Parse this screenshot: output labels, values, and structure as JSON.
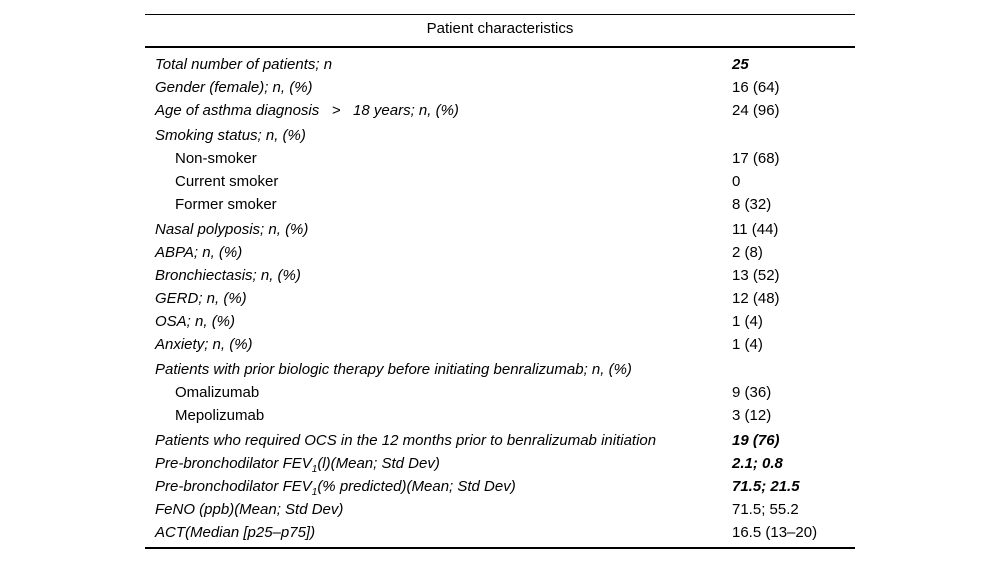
{
  "header": {
    "title": "Patient characteristics"
  },
  "colors": {
    "text": "#000000",
    "rule": "#000000",
    "background": "#ffffff"
  },
  "table": {
    "rows": [
      {
        "label": "Total number of patients; n",
        "value": "25",
        "bold": true
      },
      {
        "label": "Gender (female); n, (%)",
        "value": "16 (64)"
      },
      {
        "label": "Age of asthma diagnosis   >   18 years; n, (%)",
        "value": "24 (96)"
      },
      {
        "label": "Smoking status; n, (%)",
        "value": "",
        "gap": true
      },
      {
        "label": "Non-smoker",
        "value": "17 (68)",
        "indent": true
      },
      {
        "label": "Current smoker",
        "value": "0",
        "indent": true
      },
      {
        "label": "Former smoker",
        "value": "8 (32)",
        "indent": true
      },
      {
        "label": "Nasal polyposis; n, (%)",
        "value": "11 (44)",
        "gap": true
      },
      {
        "label": "ABPA; n, (%)",
        "value": "2 (8)"
      },
      {
        "label": "Bronchiectasis; n, (%)",
        "value": "13 (52)"
      },
      {
        "label": "GERD; n, (%)",
        "value": "12 (48)"
      },
      {
        "label": "OSA; n, (%)",
        "value": "1 (4)"
      },
      {
        "label": "Anxiety; n, (%)",
        "value": "1 (4)"
      },
      {
        "label": "Patients with prior biologic therapy before initiating benralizumab; n, (%)",
        "value": "",
        "gap": true
      },
      {
        "label": "Omalizumab",
        "value": "9 (36)",
        "indent": true
      },
      {
        "label": "Mepolizumab",
        "value": "3 (12)",
        "indent": true
      },
      {
        "label": "Patients who required OCS in the 12 months prior to benralizumab initiation",
        "value": "19 (76)",
        "bold": true,
        "gap": true
      },
      {
        "label_parts": [
          {
            "t": "Pre-bronchodilator FEV"
          },
          {
            "t": "1",
            "sub": true
          },
          {
            "t": "(l)(Mean; Std Dev)"
          }
        ],
        "value": "2.1; 0.8",
        "bold": true
      },
      {
        "label_parts": [
          {
            "t": "Pre-bronchodilator FEV"
          },
          {
            "t": "1",
            "sub": true
          },
          {
            "t": "(% predicted)(Mean; Std Dev)"
          }
        ],
        "value": "71.5; 21.5",
        "bold": true
      },
      {
        "label": "FeNO (ppb)(Mean; Std Dev)",
        "value": "71.5; 55.2"
      },
      {
        "label": "ACT(Median [p25–p75])",
        "value": "16.5 (13–20)"
      }
    ]
  }
}
